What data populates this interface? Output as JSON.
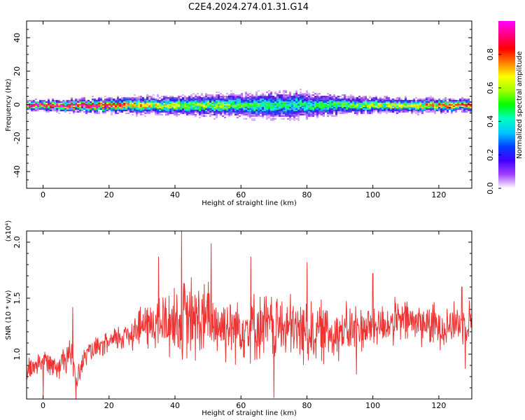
{
  "title": "C2E4.2024.274.01.31.G14",
  "chart_data": [
    {
      "type": "heatmap",
      "xlabel": "Height of straight line (km)",
      "ylabel": "Frequency (Hz)",
      "xlim": [
        -5,
        130
      ],
      "ylim": [
        -50,
        50
      ],
      "xticks": [
        "0",
        "20",
        "40",
        "60",
        "80",
        "100",
        "120"
      ],
      "yticks": [
        "40",
        "20",
        "0",
        "-20",
        "-40"
      ],
      "colorbar": {
        "label": "Normalized spectral amplitude",
        "range": [
          0,
          1
        ],
        "ticks": [
          "0.0",
          "0.2",
          "0.4",
          "0.6",
          "0.8"
        ],
        "colors": [
          "#ffffff",
          "#a040ff",
          "#4000ff",
          "#0040ff",
          "#00c8ff",
          "#00ffc0",
          "#00ff00",
          "#a0ff00",
          "#ffff00",
          "#ff8000",
          "#ff0000",
          "#ff0080",
          "#ff00ff"
        ]
      },
      "band": {
        "center_hz": 0,
        "halfwidth_hz": [
          {
            "x": -5,
            "w": 2
          },
          {
            "x": 20,
            "w": 3
          },
          {
            "x": 40,
            "w": 4
          },
          {
            "x": 60,
            "w": 5
          },
          {
            "x": 75,
            "w": 6
          },
          {
            "x": 90,
            "w": 4
          },
          {
            "x": 110,
            "w": 3
          },
          {
            "x": 130,
            "w": 2.5
          }
        ],
        "peak_amplitude": [
          {
            "x": -5,
            "a": 1.0
          },
          {
            "x": 15,
            "a": 0.95
          },
          {
            "x": 30,
            "a": 0.75
          },
          {
            "x": 45,
            "a": 0.6
          },
          {
            "x": 60,
            "a": 0.55
          },
          {
            "x": 75,
            "a": 0.45
          },
          {
            "x": 90,
            "a": 0.55
          },
          {
            "x": 110,
            "a": 0.7
          },
          {
            "x": 130,
            "a": 0.85
          }
        ]
      }
    },
    {
      "type": "line",
      "xlabel": "Height of straight line (km)",
      "ylabel": "SNR (10 * v/v)",
      "yscale_label": "(x10⁴)",
      "xlim": [
        -5,
        130
      ],
      "ylim": [
        0.6,
        2.1
      ],
      "xticks": [
        "0",
        "20",
        "40",
        "60",
        "80",
        "100",
        "120"
      ],
      "yticks": [
        "1.0",
        "1.5",
        "2.0"
      ],
      "color": "#ee3333",
      "series": [
        {
          "x": [
            -5,
            0,
            5,
            8,
            10,
            13,
            20,
            30,
            40,
            45,
            50,
            55,
            60,
            70,
            80,
            90,
            100,
            110,
            120,
            130
          ],
          "mean": [
            0.85,
            0.95,
            0.9,
            1.05,
            0.75,
            1.0,
            1.1,
            1.25,
            1.3,
            1.3,
            1.3,
            1.25,
            1.25,
            1.25,
            1.2,
            1.2,
            1.25,
            1.3,
            1.25,
            1.3
          ],
          "spread": [
            0.12,
            0.1,
            0.12,
            0.18,
            0.1,
            0.1,
            0.1,
            0.2,
            0.35,
            0.4,
            0.35,
            0.3,
            0.3,
            0.3,
            0.3,
            0.25,
            0.2,
            0.2,
            0.2,
            0.2
          ],
          "max_values": [
            {
              "x": 9,
              "y": 1.42
            },
            {
              "x": 35,
              "y": 1.87
            },
            {
              "x": 42,
              "y": 2.1
            },
            {
              "x": 51,
              "y": 1.99
            },
            {
              "x": 63,
              "y": 1.87
            },
            {
              "x": 80,
              "y": 1.82
            },
            {
              "x": 100,
              "y": 1.72
            },
            {
              "x": 127,
              "y": 1.6
            }
          ],
          "min_values": [
            {
              "x": 0,
              "y": 0.62
            },
            {
              "x": 10,
              "y": 0.6
            },
            {
              "x": 70,
              "y": 0.61
            },
            {
              "x": 95,
              "y": 0.82
            },
            {
              "x": 128,
              "y": 0.87
            }
          ]
        }
      ]
    }
  ]
}
